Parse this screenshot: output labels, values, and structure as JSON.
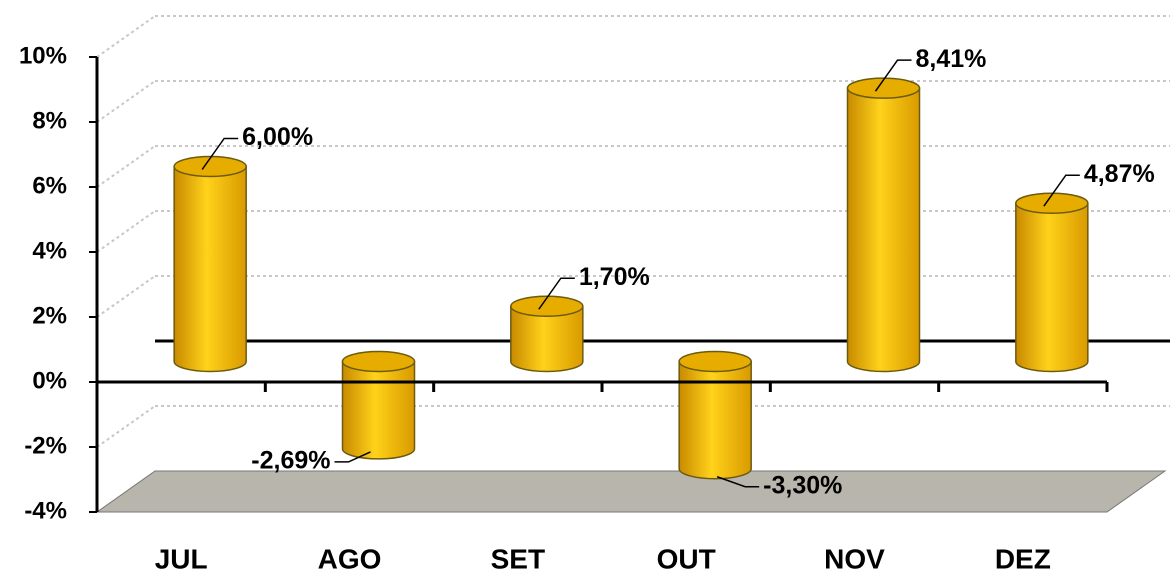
{
  "chart_data": {
    "type": "bar",
    "categories": [
      "JUL",
      "AGO",
      "SET",
      "OUT",
      "NOV",
      "DEZ"
    ],
    "values": [
      6.0,
      -2.69,
      1.7,
      -3.3,
      8.41,
      4.87
    ],
    "value_labels": [
      "6,00%",
      "-2,69%",
      "1,70%",
      "-3,30%",
      "8,41%",
      "4,87%"
    ],
    "color": "#ffc000",
    "ylim": [
      -4,
      10
    ],
    "yticks": [
      {
        "value": -4,
        "label": "-4%"
      },
      {
        "value": -2,
        "label": "-2%"
      },
      {
        "value": 0,
        "label": "0%"
      },
      {
        "value": 2,
        "label": "2%"
      },
      {
        "value": 4,
        "label": "4%"
      },
      {
        "value": 6,
        "label": "6%"
      },
      {
        "value": 8,
        "label": "8%"
      },
      {
        "value": 10,
        "label": "10%"
      }
    ],
    "grid": true
  }
}
